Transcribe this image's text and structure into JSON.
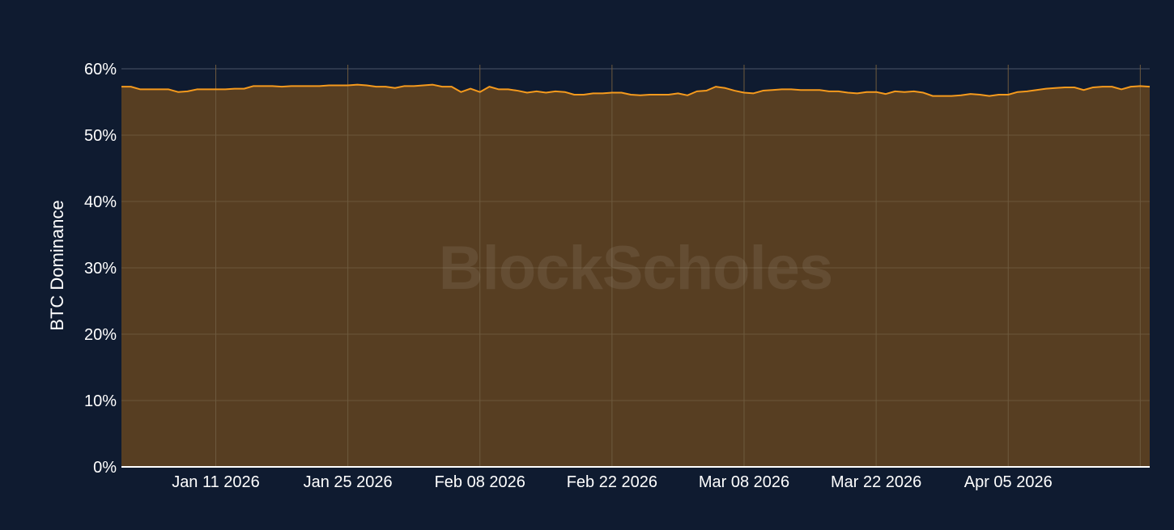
{
  "chart_data": {
    "type": "area",
    "ylabel": "BTC Dominance",
    "ylim": [
      0,
      60
    ],
    "y_ticks": [
      "0%",
      "10%",
      "20%",
      "30%",
      "40%",
      "50%",
      "60%"
    ],
    "x_tick_labels": [
      "Jan 11 2026",
      "Jan 25 2026",
      "Feb 08 2026",
      "Feb 22 2026",
      "Mar 08 2026",
      "Mar 22 2026",
      "Apr 05 2026"
    ],
    "x_range": [
      "2026-01-01",
      "2026-04-20"
    ],
    "grid": true,
    "watermark": "BlockScholes",
    "colors": {
      "background": "#0f1b30",
      "line": "#f59a1d",
      "fill": "#5a4022",
      "grid": "#6e5a3e",
      "axis": "#ffffff"
    },
    "series": [
      {
        "x": [
          "2026-01-01",
          "2026-01-02",
          "2026-01-03",
          "2026-01-04",
          "2026-01-05",
          "2026-01-06",
          "2026-01-07",
          "2026-01-08",
          "2026-01-09",
          "2026-01-10",
          "2026-01-11",
          "2026-01-12",
          "2026-01-13",
          "2026-01-14",
          "2026-01-15",
          "2026-01-16",
          "2026-01-17",
          "2026-01-18",
          "2026-01-19",
          "2026-01-20",
          "2026-01-21",
          "2026-01-22",
          "2026-01-23",
          "2026-01-24",
          "2026-01-25",
          "2026-01-26",
          "2026-01-27",
          "2026-01-28",
          "2026-01-29",
          "2026-01-30",
          "2026-01-31",
          "2026-02-01",
          "2026-02-02",
          "2026-02-03",
          "2026-02-04",
          "2026-02-05",
          "2026-02-06",
          "2026-02-07",
          "2026-02-08",
          "2026-02-09",
          "2026-02-10",
          "2026-02-11",
          "2026-02-12",
          "2026-02-13",
          "2026-02-14",
          "2026-02-15",
          "2026-02-16",
          "2026-02-17",
          "2026-02-18",
          "2026-02-19",
          "2026-02-20",
          "2026-02-21",
          "2026-02-22",
          "2026-02-23",
          "2026-02-24",
          "2026-02-25",
          "2026-02-26",
          "2026-02-27",
          "2026-02-28",
          "2026-03-01",
          "2026-03-02",
          "2026-03-03",
          "2026-03-04",
          "2026-03-05",
          "2026-03-06",
          "2026-03-07",
          "2026-03-08",
          "2026-03-09",
          "2026-03-10",
          "2026-03-11",
          "2026-03-12",
          "2026-03-13",
          "2026-03-14",
          "2026-03-15",
          "2026-03-16",
          "2026-03-17",
          "2026-03-18",
          "2026-03-19",
          "2026-03-20",
          "2026-03-21",
          "2026-03-22",
          "2026-03-23",
          "2026-03-24",
          "2026-03-25",
          "2026-03-26",
          "2026-03-27",
          "2026-03-28",
          "2026-03-29",
          "2026-03-30",
          "2026-03-31",
          "2026-04-01",
          "2026-04-02",
          "2026-04-03",
          "2026-04-04",
          "2026-04-05",
          "2026-04-06",
          "2026-04-07",
          "2026-04-08",
          "2026-04-09",
          "2026-04-10",
          "2026-04-11",
          "2026-04-12",
          "2026-04-13",
          "2026-04-14",
          "2026-04-15",
          "2026-04-16",
          "2026-04-17",
          "2026-04-18",
          "2026-04-19",
          "2026-04-20"
        ],
        "values": [
          57.3,
          57.3,
          56.9,
          56.9,
          56.9,
          56.9,
          56.5,
          56.6,
          56.9,
          56.9,
          56.9,
          56.9,
          57.0,
          57.0,
          57.4,
          57.4,
          57.4,
          57.3,
          57.4,
          57.4,
          57.4,
          57.4,
          57.5,
          57.5,
          57.5,
          57.6,
          57.5,
          57.3,
          57.3,
          57.1,
          57.4,
          57.4,
          57.5,
          57.6,
          57.3,
          57.3,
          56.5,
          57.0,
          56.5,
          57.3,
          56.9,
          56.9,
          56.7,
          56.4,
          56.6,
          56.4,
          56.6,
          56.5,
          56.1,
          56.1,
          56.3,
          56.3,
          56.4,
          56.4,
          56.1,
          56.0,
          56.1,
          56.1,
          56.1,
          56.3,
          56.0,
          56.6,
          56.7,
          57.3,
          57.1,
          56.7,
          56.4,
          56.3,
          56.7,
          56.8,
          56.9,
          56.9,
          56.8,
          56.8,
          56.8,
          56.6,
          56.6,
          56.4,
          56.3,
          56.5,
          56.5,
          56.2,
          56.6,
          56.5,
          56.6,
          56.4,
          55.9,
          55.9,
          55.9,
          56.0,
          56.2,
          56.1,
          55.9,
          56.1,
          56.1,
          56.5,
          56.6,
          56.8,
          57.0,
          57.1,
          57.2,
          57.2,
          56.8,
          57.2,
          57.3,
          57.3,
          56.9,
          57.3,
          57.4,
          57.3
        ]
      }
    ]
  }
}
